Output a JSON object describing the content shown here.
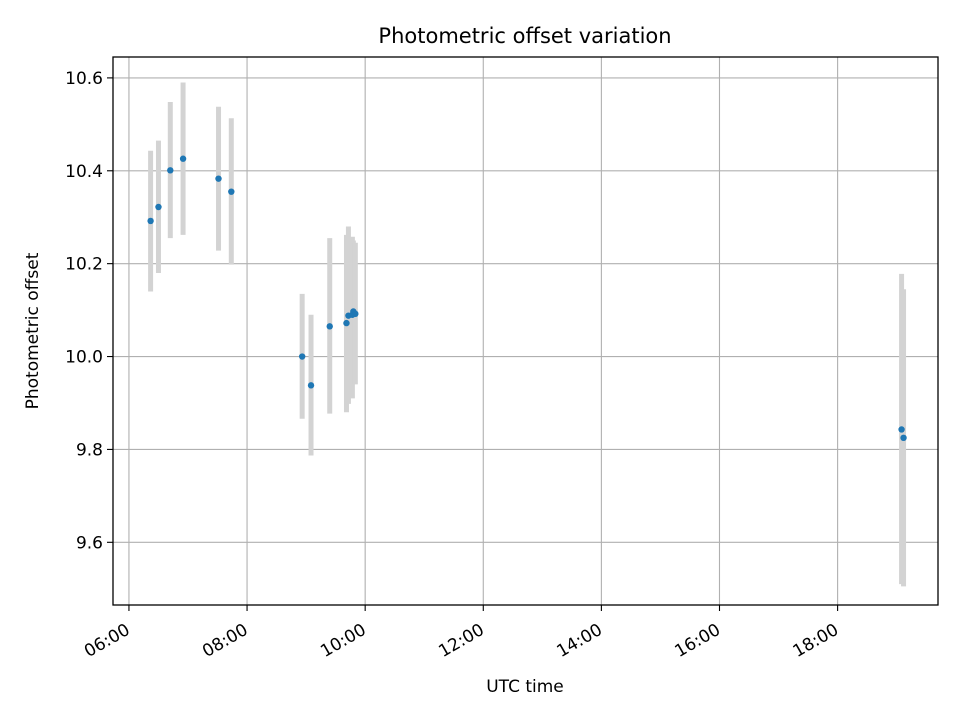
{
  "chart_data": {
    "type": "scatter",
    "title": "Photometric offset variation",
    "xlabel": "UTC time",
    "ylabel": "Photometric offset",
    "x_tick_labels": [
      "06:00",
      "08:00",
      "10:00",
      "12:00",
      "14:00",
      "16:00",
      "18:00"
    ],
    "x_ticks_hours": [
      6,
      8,
      10,
      12,
      14,
      16,
      18
    ],
    "y_tick_labels": [
      "9.6",
      "9.8",
      "10.0",
      "10.2",
      "10.4",
      "10.6"
    ],
    "y_ticks": [
      9.6,
      9.8,
      10.0,
      10.2,
      10.4,
      10.6
    ],
    "xlim_hours": [
      5.73,
      19.7
    ],
    "ylim": [
      9.465,
      10.645
    ],
    "grid": true,
    "point_color": "#1f77b4",
    "errorbar_color": "#d3d3d3",
    "points": [
      {
        "time": "06:22",
        "y": 10.292,
        "ylo": 10.14,
        "yhi": 10.443
      },
      {
        "time": "06:30",
        "y": 10.322,
        "ylo": 10.18,
        "yhi": 10.465
      },
      {
        "time": "06:42",
        "y": 10.401,
        "ylo": 10.255,
        "yhi": 10.548
      },
      {
        "time": "06:55",
        "y": 10.426,
        "ylo": 10.262,
        "yhi": 10.59
      },
      {
        "time": "07:31",
        "y": 10.383,
        "ylo": 10.228,
        "yhi": 10.538
      },
      {
        "time": "07:44",
        "y": 10.355,
        "ylo": 10.198,
        "yhi": 10.513
      },
      {
        "time": "08:56",
        "y": 10.0,
        "ylo": 9.866,
        "yhi": 10.135
      },
      {
        "time": "09:05",
        "y": 9.938,
        "ylo": 9.787,
        "yhi": 10.09
      },
      {
        "time": "09:24",
        "y": 10.065,
        "ylo": 9.877,
        "yhi": 10.255
      },
      {
        "time": "09:41",
        "y": 10.072,
        "ylo": 9.88,
        "yhi": 10.262
      },
      {
        "time": "09:43",
        "y": 10.088,
        "ylo": 9.898,
        "yhi": 10.28
      },
      {
        "time": "09:47",
        "y": 10.09,
        "ylo": 9.91,
        "yhi": 10.258
      },
      {
        "time": "09:48",
        "y": 10.097,
        "ylo": 9.945,
        "yhi": 10.25
      },
      {
        "time": "09:50",
        "y": 10.092,
        "ylo": 9.94,
        "yhi": 10.245
      },
      {
        "time": "19:05",
        "y": 9.843,
        "ylo": 9.51,
        "yhi": 10.178
      },
      {
        "time": "19:07",
        "y": 9.825,
        "ylo": 9.505,
        "yhi": 10.145
      }
    ]
  }
}
